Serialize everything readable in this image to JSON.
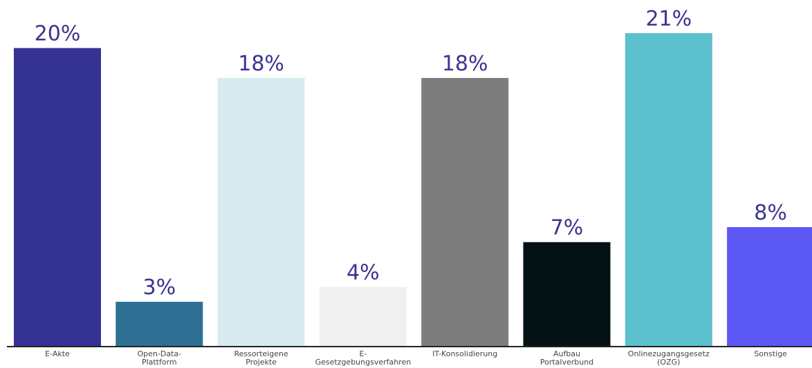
{
  "chart_data": {
    "type": "bar",
    "title": "",
    "xlabel": "",
    "ylabel": "",
    "unit": "%",
    "categories": [
      "E-Akte",
      "Open-Data-Plattform",
      "Ressorteigene Projekte",
      "E-Gesetzgebungsverfahren",
      "IT-Konsolidierung",
      "Aufbau Portalverbund",
      "Onlinezugangsgesetz (OZG)",
      "Sonstige"
    ],
    "category_label_lines": [
      [
        "E-Akte"
      ],
      [
        "Open-Data-",
        "Plattform"
      ],
      [
        "Ressorteigene",
        "Projekte"
      ],
      [
        "E-",
        "Gesetzgebungsverfahren"
      ],
      [
        "IT-Konsolidierung"
      ],
      [
        "Aufbau",
        "Portalverbund"
      ],
      [
        "Onlinezugangsgesetz",
        "(OZG)"
      ],
      [
        "Sonstige"
      ]
    ],
    "values": [
      20,
      3,
      18,
      4,
      18,
      7,
      21,
      8
    ],
    "value_labels": [
      "20%",
      "3%",
      "18%",
      "4%",
      "18%",
      "7%",
      "21%",
      "8%"
    ],
    "colors": [
      "#343293",
      "#2e7094",
      "#d8ecf0",
      "#f0f0f0",
      "#7d7d7d",
      "#051215",
      "#5cc0cc",
      "#5b58f5"
    ],
    "ylim": [
      0,
      21
    ],
    "grid": false,
    "legend": "none"
  }
}
